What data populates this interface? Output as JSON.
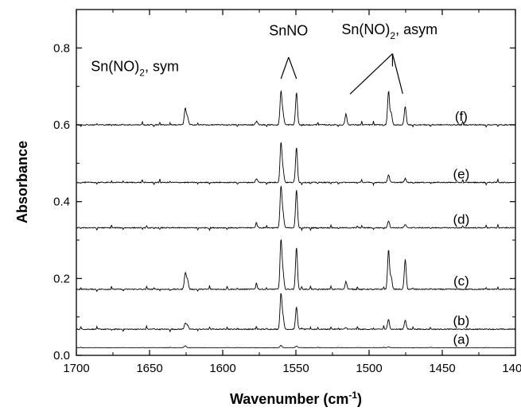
{
  "chart_data": {
    "type": "line",
    "title": "",
    "xlabel": "Wavenumber (cm",
    "xlabel_sup": "-1",
    "xlabel_close": ")",
    "ylabel": "Absorbance",
    "xlim": [
      1700,
      1400
    ],
    "ylim": [
      0.0,
      0.9
    ],
    "x_ticks": [
      1700,
      1650,
      1600,
      1550,
      1500,
      1450,
      1400
    ],
    "y_ticks": [
      0.0,
      0.2,
      0.4,
      0.6,
      0.8
    ],
    "y_tick_labels": [
      "0.0",
      "0.2",
      "0.4",
      "0.6",
      "0.8"
    ],
    "grid": false,
    "line_color": "#000000",
    "series": [
      {
        "name": "(a)",
        "baseline": 0.02,
        "peaks": [
          [
            1625.6,
            0.005
          ],
          [
            1560.2,
            0.006
          ],
          [
            1549.6,
            0.004
          ],
          [
            1486.7,
            0.002
          ]
        ]
      },
      {
        "name": "(b)",
        "baseline": 0.068,
        "peaks": [
          [
            1625.6,
            0.016
          ],
          [
            1624.1,
            0.01
          ],
          [
            1560.2,
            0.092
          ],
          [
            1558.8,
            0.03
          ],
          [
            1549.6,
            0.058
          ],
          [
            1486.7,
            0.025
          ],
          [
            1475.3,
            0.024
          ],
          [
            1515.8,
            0.004
          ]
        ]
      },
      {
        "name": "(c)",
        "baseline": 0.172,
        "peaks": [
          [
            1625.6,
            0.042
          ],
          [
            1624.1,
            0.025
          ],
          [
            1560.2,
            0.128
          ],
          [
            1558.8,
            0.04
          ],
          [
            1549.6,
            0.11
          ],
          [
            1515.8,
            0.02
          ],
          [
            1486.7,
            0.102
          ],
          [
            1484.9,
            0.032
          ],
          [
            1475.3,
            0.077
          ],
          [
            1576.9,
            0.01
          ]
        ]
      },
      {
        "name": "(d)",
        "baseline": 0.332,
        "peaks": [
          [
            1560.2,
            0.106
          ],
          [
            1558.8,
            0.035
          ],
          [
            1549.6,
            0.098
          ],
          [
            1486.7,
            0.018
          ],
          [
            1475.3,
            0.008
          ],
          [
            1576.9,
            0.01
          ]
        ]
      },
      {
        "name": "(e)",
        "baseline": 0.45,
        "peaks": [
          [
            1560.2,
            0.102
          ],
          [
            1558.8,
            0.032
          ],
          [
            1549.6,
            0.092
          ],
          [
            1486.7,
            0.02
          ],
          [
            1475.3,
            0.01
          ],
          [
            1576.9,
            0.01
          ]
        ]
      },
      {
        "name": "(f)",
        "baseline": 0.6,
        "peaks": [
          [
            1625.6,
            0.042
          ],
          [
            1624.1,
            0.02
          ],
          [
            1560.2,
            0.086
          ],
          [
            1558.8,
            0.028
          ],
          [
            1549.6,
            0.084
          ],
          [
            1515.8,
            0.028
          ],
          [
            1486.7,
            0.088
          ],
          [
            1484.9,
            0.03
          ],
          [
            1475.3,
            0.048
          ],
          [
            1576.9,
            0.01
          ]
        ]
      }
    ],
    "annotations": [
      {
        "id": "sym",
        "text": "Sn(NO)",
        "sub": "2",
        "suffix": ", sym",
        "anchor_x": 1660,
        "anchor_y": 0.74
      },
      {
        "id": "snno",
        "text": "SnNO",
        "sub": "",
        "suffix": "",
        "anchor_x": 1555,
        "anchor_y": 0.833,
        "pointer_from": [
          1555,
          0.776
        ],
        "pointer_to": [
          [
            1560.2,
            0.72
          ],
          [
            1549.6,
            0.72
          ]
        ]
      },
      {
        "id": "asym",
        "text": "Sn(NO)",
        "sub": "2",
        "suffix": ", asym",
        "anchor_x": 1486,
        "anchor_y": 0.836,
        "pointer_from": [
          1484,
          0.785
        ],
        "pointer_to": [
          [
            1513,
            0.68
          ],
          [
            1477,
            0.681
          ]
        ],
        "pointer_short": [
          1484,
          0.752
        ]
      }
    ]
  }
}
